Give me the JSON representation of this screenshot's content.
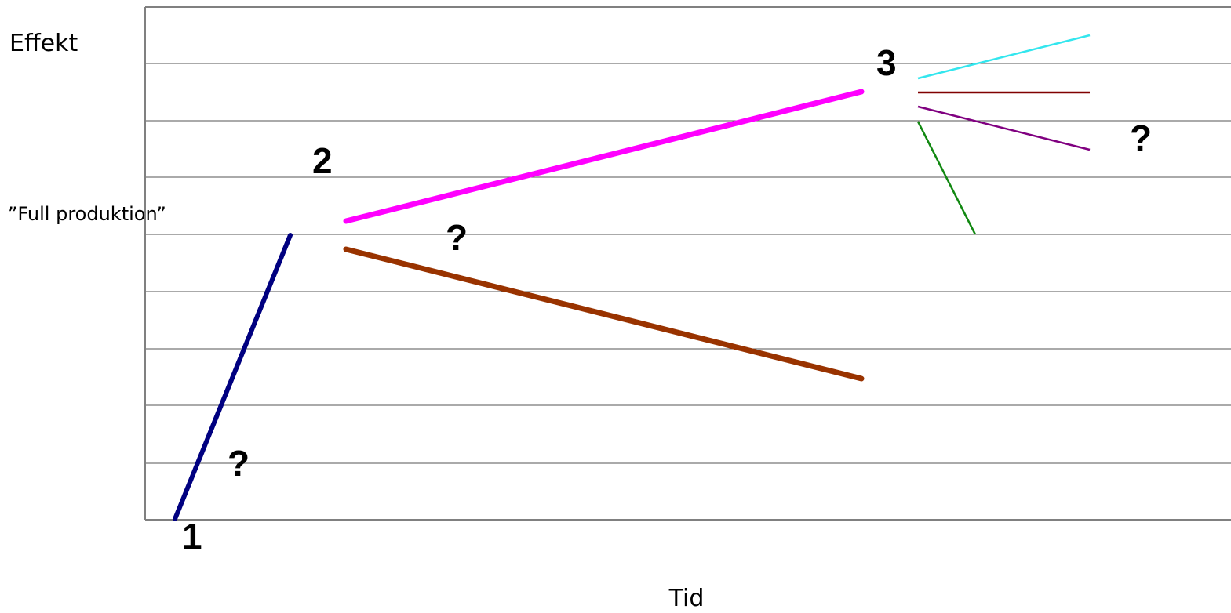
{
  "labels": {
    "y_axis": "Effekt",
    "x_axis": "Tid",
    "full_production": "”Full produktion”"
  },
  "markers": {
    "phase_1": "1",
    "phase_2": "2",
    "phase_3": "3",
    "question_early": "?",
    "question_middle": "?",
    "question_late": "?"
  },
  "colors": {
    "gridline": "#555555",
    "axis": "#808080",
    "phase1_rise": "#000080",
    "phase2_up": "#ff00ff",
    "phase2_down": "#993300",
    "phase3_cyan": "#33e6ee",
    "phase3_darkred": "#800000",
    "phase3_purple": "#800080",
    "phase3_green": "#118811"
  }
}
